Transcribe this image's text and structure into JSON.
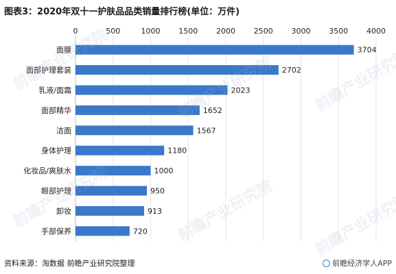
{
  "title": "图表3：2020年双十一护肤品品类销量排行榜(单位：万件)",
  "source": "资料来源：淘数据 前瞻产业研究院整理",
  "brand": "前瞻经济学人APP",
  "watermark": "前瞻产业研究院",
  "chart_data": {
    "type": "bar",
    "orientation": "horizontal",
    "categories": [
      "面膜",
      "面部护理套装",
      "乳液/面霜",
      "面部精华",
      "洁面",
      "身体护理",
      "化妆品/爽肤水",
      "眼部护理",
      "卸妆",
      "手部保养"
    ],
    "values": [
      3704,
      2702,
      2023,
      1652,
      1567,
      1180,
      1000,
      950,
      913,
      720
    ],
    "xlim": [
      0,
      4000
    ],
    "xticks": [
      0,
      500,
      1000,
      1500,
      2000,
      2500,
      3000,
      3500,
      4000
    ],
    "axis_position": "top",
    "grid": true,
    "bar_color": "#3a78c9",
    "grid_color": "#e3e3e3"
  }
}
